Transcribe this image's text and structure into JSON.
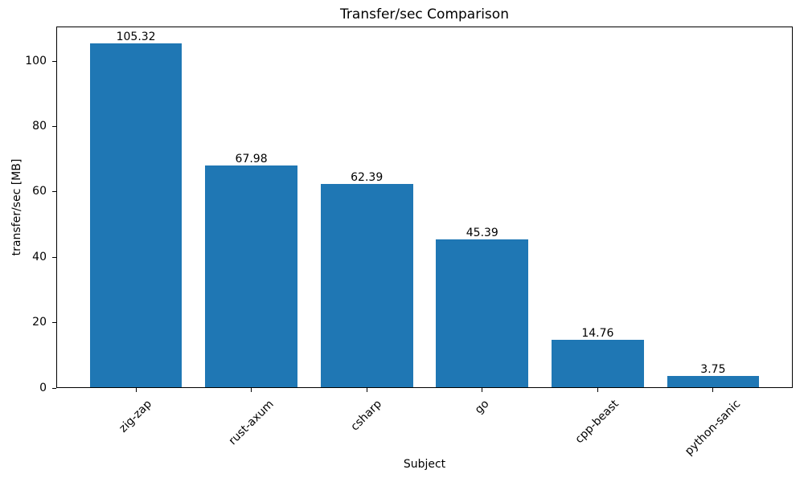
{
  "chart_data": {
    "type": "bar",
    "title": "Transfer/sec Comparison",
    "xlabel": "Subject",
    "ylabel": "transfer/sec [MB]",
    "categories": [
      "zig-zap",
      "rust-axum",
      "csharp",
      "go",
      "cpp-beast",
      "python-sanic"
    ],
    "values": [
      105.32,
      67.98,
      62.39,
      45.39,
      14.76,
      3.75
    ],
    "value_labels": [
      "105.32",
      "67.98",
      "62.39",
      "45.39",
      "14.76",
      "3.75"
    ],
    "yticks": [
      0,
      20,
      40,
      60,
      80,
      100
    ],
    "ylim": [
      0,
      110.59
    ],
    "xlim": [
      -0.69,
      5.69
    ],
    "bar_width_ratio": 0.8,
    "bar_color": "#1f77b4",
    "spine_color": "#000000",
    "text_color": "#000000",
    "grid": false,
    "legend": null,
    "xtick_label_rotation_deg": 45
  }
}
